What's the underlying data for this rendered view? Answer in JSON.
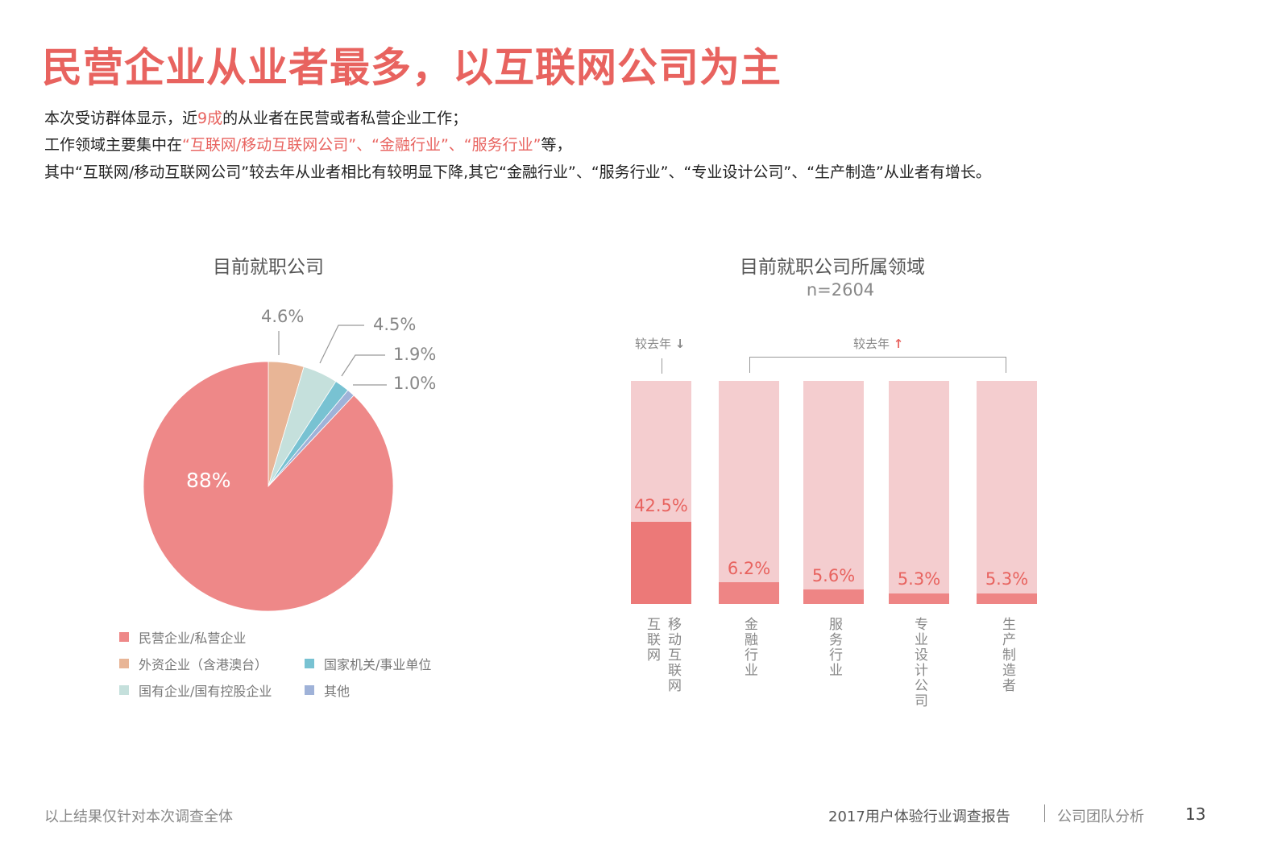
{
  "page": {
    "title": "民营企业从业者最多，以互联网公司为主",
    "description": {
      "line1": {
        "pre": "本次受访群体显示，近",
        "highlight": "9成",
        "post": "的从业者在民营或者私营企业工作；"
      },
      "line2": {
        "pre": "工作领域主要集中在",
        "highlight": "“互联网/移动互联网公司”、“金融行业”、“服务行业”",
        "post": "等，"
      },
      "line3": "其中“互联网/移动互联网公司”较去年从业者相比有较明显下降,其它“金融行业”、“服务行业”、“专业设计公司”、“生产制造”从业者有增长。"
    },
    "colors": {
      "accent": "#e8635f",
      "bar_bg": "#f4cdcf",
      "bar_fill_main": "#ec7978",
      "bar_fill": "#ee8585"
    }
  },
  "footer": {
    "note": "以上结果仅针对本次调查全体",
    "report": "2017用户体验行业调查报告",
    "section": "公司团队分析",
    "page_number": "13"
  },
  "chart_data": [
    {
      "type": "pie",
      "title": "目前就职公司",
      "slices": [
        {
          "label": "外资企业（含港澳台）",
          "value": 4.6,
          "display": "4.6%",
          "color": "#e8b596"
        },
        {
          "label": "国有企业/国有控股企业",
          "value": 4.5,
          "display": "4.5%",
          "color": "#c5e0dc"
        },
        {
          "label": "国家机关/事业单位",
          "value": 1.9,
          "display": "1.9%",
          "color": "#78c2d2"
        },
        {
          "label": "其他",
          "value": 1.0,
          "display": "1.0%",
          "color": "#9fb2d8"
        },
        {
          "label": "民营企业/私营企业",
          "value": 88,
          "display": "88%",
          "color": "#ee8888"
        }
      ],
      "legend": [
        {
          "label": "民营企业/私营企业",
          "color": "#ee8888"
        },
        {
          "label": "外资企业（含港澳台）",
          "color": "#e8b596"
        },
        {
          "label": "国家机关/事业单位",
          "color": "#78c2d2"
        },
        {
          "label": "国有企业/国有控股企业",
          "color": "#c5e0dc"
        },
        {
          "label": "其他",
          "color": "#9fb2d8"
        }
      ],
      "legend_position": "bottom"
    },
    {
      "type": "bar",
      "title": "目前就职公司所属领域",
      "subtitle": "n=2604",
      "categories": [
        "互联网 移动互联网",
        "金融行业",
        "服务行业",
        "专业设计公司",
        "生产制造者"
      ],
      "category_lines": [
        [
          "互联网",
          "移动互联网"
        ],
        [
          "金融行业"
        ],
        [
          "服务行业"
        ],
        [
          "专业设计公司"
        ],
        [
          "生产制造者"
        ]
      ],
      "values": [
        42.5,
        6.2,
        5.6,
        5.3,
        5.3
      ],
      "labels": [
        "42.5%",
        "6.2%",
        "5.6%",
        "5.3%",
        "5.3%"
      ],
      "ylim": [
        0,
        100
      ],
      "annotations": [
        {
          "text": "较去年",
          "arrow": "down",
          "applies_to": [
            "互联网 移动互联网"
          ]
        },
        {
          "text": "较去年",
          "arrow": "up",
          "applies_to": [
            "金融行业",
            "服务行业",
            "专业设计公司",
            "生产制造者"
          ]
        }
      ],
      "grid": false
    }
  ]
}
